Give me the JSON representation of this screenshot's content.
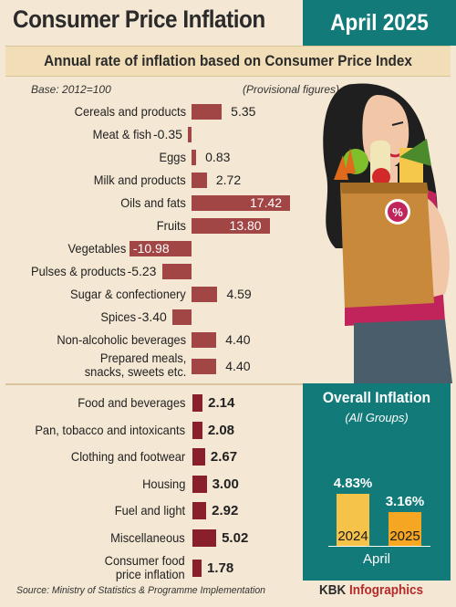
{
  "header": {
    "title": "Consumer Price Inflation",
    "date": "April 2025",
    "subtitle": "Annual rate of inflation based on Consumer Price Index"
  },
  "notes": {
    "base": "Base: 2012=100",
    "provisional": "(Provisional figures)"
  },
  "colors": {
    "background": "#f4e7d3",
    "accent_teal": "#127b7a",
    "item_bar": "#a24545",
    "group_bar": "#8a1f2c",
    "overall_bar": "#f5a623"
  },
  "chart_data": [
    {
      "type": "bar",
      "orientation": "horizontal",
      "categories": [
        "Cereals and products",
        "Meat & fish",
        "Eggs",
        "Milk and products",
        "Oils and fats",
        "Fruits",
        "Vegetables",
        "Pulses & products",
        "Sugar & confectionery",
        "Spices",
        "Non-alcoholic beverages",
        "Prepared meals, snacks, sweets etc."
      ],
      "value_labels": [
        "5.35",
        "-0.35",
        "0.83",
        "2.72",
        "17.42",
        "13.80",
        "-10.98",
        "-5.23",
        "4.59",
        "-3.40",
        "4.40",
        "4.40"
      ],
      "values": [
        5.35,
        -0.35,
        0.83,
        2.72,
        17.42,
        13.8,
        -10.98,
        -5.23,
        4.59,
        -3.4,
        4.4,
        4.4
      ]
    },
    {
      "type": "bar",
      "orientation": "horizontal",
      "categories": [
        "Food and beverages",
        "Pan, tobacco and intoxicants",
        "Clothing and footwear",
        "Housing",
        "Fuel and light",
        "Miscellaneous",
        "Consumer food price inflation"
      ],
      "value_labels": [
        "2.14",
        "2.08",
        "2.67",
        "3.00",
        "2.92",
        "5.02",
        "1.78"
      ],
      "values": [
        2.14,
        2.08,
        2.67,
        3.0,
        2.92,
        5.02,
        1.78
      ]
    },
    {
      "type": "bar",
      "title": "Overall Inflation",
      "subtitle": "(All Groups)",
      "categories": [
        "2024",
        "2025"
      ],
      "value_labels": [
        "4.83%",
        "3.16%"
      ],
      "values": [
        4.83,
        3.16
      ],
      "xlabel": "April"
    }
  ],
  "footer": {
    "source": "Source: Ministry of Statistics & Programme Implementation",
    "brand_prefix": "KBK ",
    "brand_suffix": "Infographics"
  },
  "illustration": {
    "badge": "%"
  }
}
